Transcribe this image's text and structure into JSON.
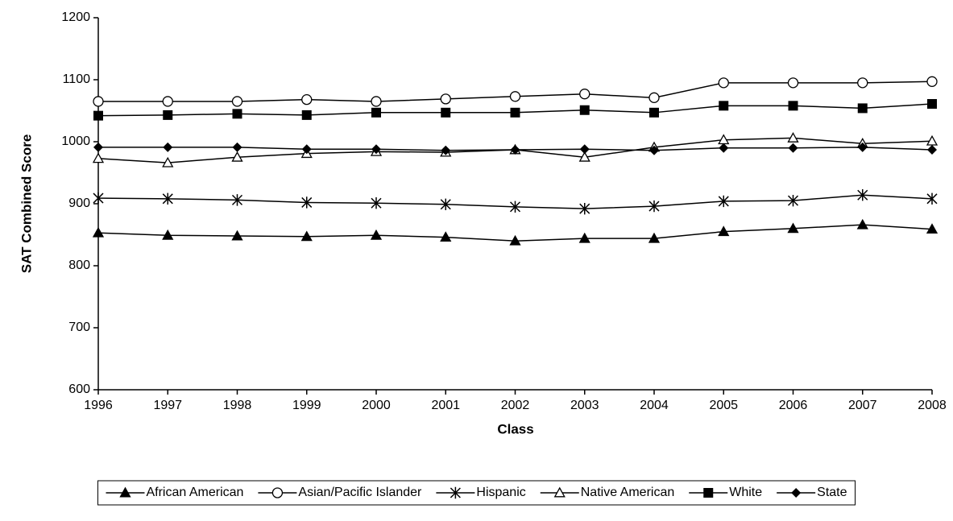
{
  "chart_data": {
    "type": "line",
    "x_label": "Class",
    "y_label": "SAT Combined Score",
    "x": [
      1996,
      1997,
      1998,
      1999,
      2000,
      2001,
      2002,
      2003,
      2004,
      2005,
      2006,
      2007,
      2008
    ],
    "xlim": [
      1996,
      2008
    ],
    "xticks": [
      1996,
      1997,
      1998,
      1999,
      2000,
      2001,
      2002,
      2003,
      2004,
      2005,
      2006,
      2007,
      2008
    ],
    "ylim": [
      600,
      1200
    ],
    "yticks": [
      600,
      700,
      800,
      900,
      1000,
      1100,
      1200
    ],
    "grid": false,
    "legend": "bottom",
    "series": [
      {
        "name": "African American",
        "color": "#000000",
        "marker": "triangle",
        "values": [
          853,
          849,
          848,
          847,
          849,
          846,
          840,
          844,
          844,
          855,
          860,
          866,
          859
        ]
      },
      {
        "name": "Asian/Pacific Islander",
        "color": "#000000",
        "marker": "circle-open",
        "values": [
          1065,
          1065,
          1065,
          1068,
          1065,
          1069,
          1073,
          1077,
          1071,
          1095,
          1095,
          1095,
          1097
        ]
      },
      {
        "name": "Hispanic",
        "color": "#000000",
        "marker": "asterisk",
        "values": [
          909,
          908,
          906,
          902,
          901,
          899,
          895,
          892,
          896,
          904,
          905,
          914,
          908
        ]
      },
      {
        "name": "Native American",
        "color": "#000000",
        "marker": "triangle-open",
        "values": [
          973,
          966,
          975,
          981,
          984,
          983,
          987,
          975,
          991,
          1003,
          1006,
          997,
          1001
        ]
      },
      {
        "name": "White",
        "color": "#000000",
        "marker": "square",
        "values": [
          1042,
          1043,
          1045,
          1043,
          1047,
          1047,
          1047,
          1051,
          1047,
          1058,
          1058,
          1054,
          1061
        ]
      },
      {
        "name": "State",
        "color": "#000000",
        "marker": "diamond",
        "values": [
          991,
          991,
          991,
          988,
          988,
          986,
          987,
          988,
          986,
          990,
          990,
          991,
          987
        ]
      }
    ]
  }
}
